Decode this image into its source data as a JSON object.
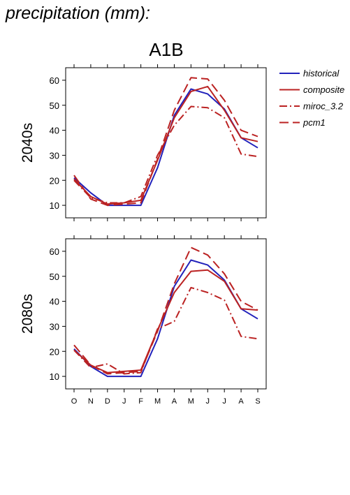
{
  "heading": "precipitation (mm):",
  "chart_data": {
    "type": "line",
    "title": "A1B",
    "categories": [
      "O",
      "N",
      "D",
      "J",
      "F",
      "M",
      "A",
      "M",
      "J",
      "J",
      "A",
      "S"
    ],
    "ylim": [
      5,
      65
    ],
    "yticks": [
      10,
      20,
      30,
      40,
      50,
      60
    ],
    "legend_position": "right",
    "grid": false,
    "legend": [
      {
        "name": "historical",
        "color": "#2222bb",
        "dash": "solid"
      },
      {
        "name": "composite",
        "color": "#bb2222",
        "dash": "solid"
      },
      {
        "name": "miroc_3.2",
        "color": "#bb2222",
        "dash": "dashdot"
      },
      {
        "name": "pcm1",
        "color": "#bb2222",
        "dash": "dashed"
      }
    ],
    "panels": [
      {
        "label": "2040s",
        "series": [
          {
            "name": "historical",
            "values": [
              21,
              15,
              10,
              10,
              10,
              25,
              46,
              56.5,
              54.5,
              48.5,
              37,
              33
            ]
          },
          {
            "name": "composite",
            "values": [
              20.5,
              13.5,
              10.5,
              11,
              12,
              28,
              45,
              55.5,
              57.5,
              48,
              37,
              35.5
            ]
          },
          {
            "name": "miroc_3.2",
            "values": [
              20,
              13,
              11,
              11,
              13.5,
              30,
              42,
              49.5,
              49,
              45,
              30.5,
              29.5
            ]
          },
          {
            "name": "pcm1",
            "values": [
              22,
              12.5,
              10,
              10.5,
              11,
              28.5,
              48,
              61,
              60.5,
              52,
              40,
              37.5
            ]
          }
        ]
      },
      {
        "label": "2080s",
        "series": [
          {
            "name": "historical",
            "values": [
              21,
              14,
              10,
              10,
              10,
              25,
              46,
              56.5,
              54.5,
              48.5,
              37,
              33
            ]
          },
          {
            "name": "composite",
            "values": [
              20.5,
              14.5,
              11.5,
              12,
              12.5,
              28.5,
              43.5,
              52,
              52.5,
              48,
              37,
              36.5
            ]
          },
          {
            "name": "miroc_3.2",
            "values": [
              20.5,
              13.5,
              15,
              11,
              11.5,
              29,
              32,
              45.5,
              43.5,
              40.5,
              26,
              25
            ]
          },
          {
            "name": "pcm1",
            "values": [
              22.5,
              14.5,
              11,
              11.5,
              12,
              28,
              47,
              61.5,
              58.5,
              51,
              40,
              36.5
            ]
          }
        ]
      }
    ]
  }
}
